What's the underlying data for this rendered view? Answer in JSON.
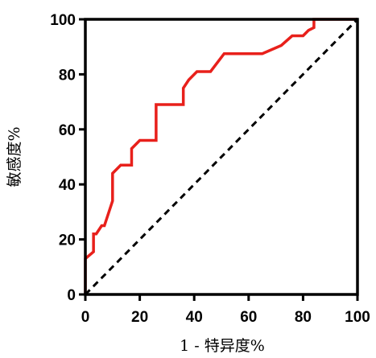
{
  "chart_data": {
    "type": "line",
    "title": "",
    "xlabel": "1 - 特异度%",
    "ylabel": "敏感度%",
    "xlim": [
      0,
      100
    ],
    "ylim": [
      0,
      100
    ],
    "x_ticks": [
      "0",
      "20",
      "40",
      "60",
      "80",
      "100"
    ],
    "y_ticks": [
      "0",
      "20",
      "40",
      "60",
      "80",
      "100"
    ],
    "grid": false,
    "legend": "none",
    "series": [
      {
        "color": "#e8201b",
        "style": "solid",
        "x": [
          0,
          0,
          3,
          3,
          4,
          6,
          7,
          8,
          10,
          10,
          13,
          17,
          17,
          20,
          26,
          26,
          36,
          36,
          38,
          41,
          46,
          51,
          65,
          72,
          76,
          80,
          82,
          82,
          84,
          84,
          100
        ],
        "y": [
          0,
          13,
          15.5,
          22,
          22,
          25,
          25,
          28,
          34,
          44,
          47,
          47,
          53,
          56,
          56,
          69,
          69,
          75,
          78,
          81,
          81,
          87.5,
          87.5,
          90.5,
          94,
          94,
          96,
          96,
          97,
          100,
          100
        ]
      },
      {
        "color": "#000000",
        "style": "dashed",
        "x": [
          0,
          100
        ],
        "y": [
          0,
          100
        ]
      }
    ]
  }
}
